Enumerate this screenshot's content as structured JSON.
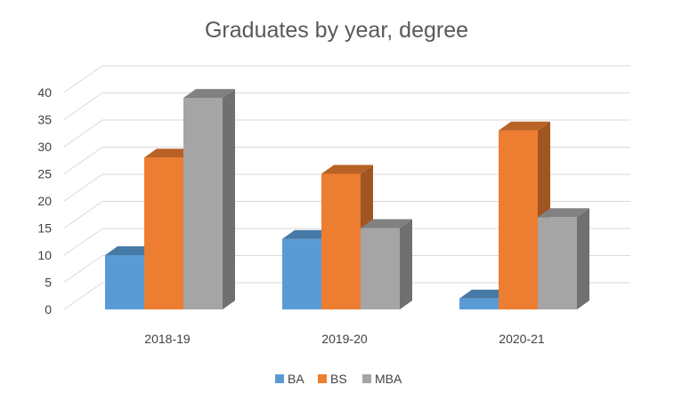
{
  "chart_data": {
    "type": "bar",
    "title": "Graduates by year, degree",
    "categories": [
      "2018-19",
      "2019-20",
      "2020-21"
    ],
    "series": [
      {
        "name": "BA",
        "values": [
          10,
          13,
          2
        ],
        "color": "#5b9bd5"
      },
      {
        "name": "BS",
        "values": [
          28,
          25,
          33
        ],
        "color": "#ed7d31"
      },
      {
        "name": "MBA",
        "values": [
          39,
          15,
          17
        ],
        "color": "#a5a5a5"
      }
    ],
    "ylim": [
      0,
      40
    ],
    "yticks": [
      0,
      5,
      10,
      15,
      20,
      25,
      30,
      35,
      40
    ],
    "grid": true,
    "legend": "bottom",
    "style": "3d-clustered-column",
    "colors": {
      "title": "#595959",
      "axis_text": "#404040",
      "grid": "#d9d9d9"
    }
  }
}
